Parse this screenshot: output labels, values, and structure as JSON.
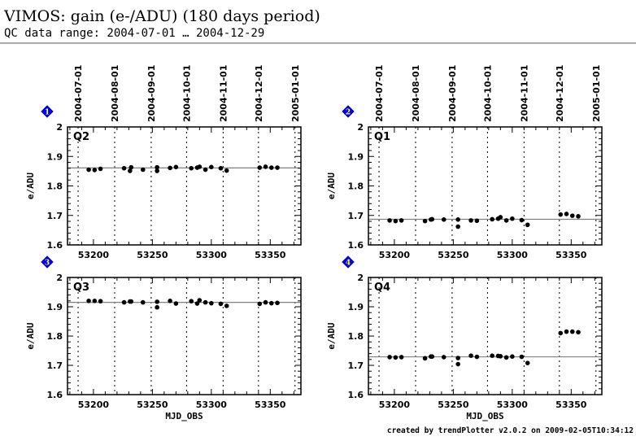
{
  "header": {
    "title": "VIMOS: gain (e-/ADU) (180 days period)",
    "subtitle": "QC data range: 2004-07-01 … 2004-12-29"
  },
  "footer": "created by trendPlotter v2.0.2 on 2009-02-05T10:34:12",
  "colors": {
    "badge": "#0000ff",
    "badge_text": "#ffff00",
    "points": "#000000",
    "mean_line": "#808080"
  },
  "chart_data": [
    {
      "type": "scatter",
      "badge": "1",
      "label": "Q2",
      "ylabel": "e/ADU",
      "xlabel": "",
      "xlim": [
        53178,
        53376
      ],
      "ylim": [
        1.6,
        2.0
      ],
      "xticks": [
        53200,
        53250,
        53300,
        53350
      ],
      "yticks": [
        1.6,
        1.7,
        1.8,
        1.9,
        2
      ],
      "date_ticks": [
        {
          "mjd": 53187,
          "label": "2004-07-01"
        },
        {
          "mjd": 53218,
          "label": "2004-08-01"
        },
        {
          "mjd": 53249,
          "label": "2004-09-01"
        },
        {
          "mjd": 53279,
          "label": "2004-10-01"
        },
        {
          "mjd": 53310,
          "label": "2004-11-01"
        },
        {
          "mjd": 53340,
          "label": "2004-12-01"
        },
        {
          "mjd": 53371,
          "label": "2005-01-01"
        }
      ],
      "mean": 1.861,
      "x": [
        53196,
        53201,
        53206,
        53226,
        53231,
        53232,
        53242,
        53254,
        53254,
        53265,
        53270,
        53283,
        53288,
        53290,
        53295,
        53300,
        53308,
        53313,
        53341,
        53346,
        53351,
        53356
      ],
      "y": [
        1.855,
        1.854,
        1.858,
        1.86,
        1.851,
        1.863,
        1.855,
        1.863,
        1.851,
        1.861,
        1.864,
        1.86,
        1.862,
        1.865,
        1.855,
        1.864,
        1.86,
        1.852,
        1.862,
        1.865,
        1.862,
        1.862
      ]
    },
    {
      "type": "scatter",
      "badge": "2",
      "label": "Q1",
      "ylabel": "e/ADU",
      "xlabel": "",
      "xlim": [
        53178,
        53376
      ],
      "ylim": [
        1.6,
        2.0
      ],
      "xticks": [
        53200,
        53250,
        53300,
        53350
      ],
      "yticks": [
        1.6,
        1.7,
        1.8,
        1.9,
        2
      ],
      "date_ticks": [
        {
          "mjd": 53187,
          "label": "2004-07-01"
        },
        {
          "mjd": 53218,
          "label": "2004-08-01"
        },
        {
          "mjd": 53249,
          "label": "2004-09-01"
        },
        {
          "mjd": 53279,
          "label": "2004-10-01"
        },
        {
          "mjd": 53310,
          "label": "2004-11-01"
        },
        {
          "mjd": 53340,
          "label": "2004-12-01"
        },
        {
          "mjd": 53371,
          "label": "2005-01-01"
        }
      ],
      "mean": 1.687,
      "x": [
        53196,
        53201,
        53206,
        53226,
        53231,
        53232,
        53242,
        53254,
        53254,
        53265,
        53270,
        53283,
        53288,
        53290,
        53295,
        53300,
        53308,
        53313,
        53341,
        53346,
        53351,
        53356
      ],
      "y": [
        1.683,
        1.681,
        1.683,
        1.681,
        1.686,
        1.687,
        1.686,
        1.686,
        1.662,
        1.683,
        1.682,
        1.687,
        1.689,
        1.694,
        1.683,
        1.689,
        1.684,
        1.668,
        1.703,
        1.705,
        1.699,
        1.697
      ]
    },
    {
      "type": "scatter",
      "badge": "3",
      "label": "Q3",
      "ylabel": "e/ADU",
      "xlabel": "MJD_OBS",
      "xlim": [
        53178,
        53376
      ],
      "ylim": [
        1.6,
        2.0
      ],
      "xticks": [
        53200,
        53250,
        53300,
        53350
      ],
      "yticks": [
        1.6,
        1.7,
        1.8,
        1.9,
        2
      ],
      "date_ticks": [
        {
          "mjd": 53187,
          "label": ""
        },
        {
          "mjd": 53218,
          "label": ""
        },
        {
          "mjd": 53249,
          "label": ""
        },
        {
          "mjd": 53279,
          "label": ""
        },
        {
          "mjd": 53310,
          "label": ""
        },
        {
          "mjd": 53340,
          "label": ""
        },
        {
          "mjd": 53371,
          "label": ""
        }
      ],
      "mean": 1.915,
      "x": [
        53196,
        53201,
        53206,
        53226,
        53231,
        53232,
        53242,
        53254,
        53254,
        53265,
        53270,
        53283,
        53288,
        53290,
        53295,
        53300,
        53308,
        53313,
        53341,
        53346,
        53351,
        53356
      ],
      "y": [
        1.92,
        1.92,
        1.919,
        1.915,
        1.918,
        1.918,
        1.915,
        1.917,
        1.898,
        1.92,
        1.911,
        1.919,
        1.911,
        1.922,
        1.915,
        1.912,
        1.91,
        1.903,
        1.91,
        1.915,
        1.912,
        1.913
      ]
    },
    {
      "type": "scatter",
      "badge": "4",
      "label": "Q4",
      "ylabel": "e/ADU",
      "xlabel": "MJD_OBS",
      "xlim": [
        53178,
        53376
      ],
      "ylim": [
        1.6,
        2.0
      ],
      "xticks": [
        53200,
        53250,
        53300,
        53350
      ],
      "yticks": [
        1.6,
        1.7,
        1.8,
        1.9,
        2
      ],
      "date_ticks": [
        {
          "mjd": 53187,
          "label": ""
        },
        {
          "mjd": 53218,
          "label": ""
        },
        {
          "mjd": 53249,
          "label": ""
        },
        {
          "mjd": 53279,
          "label": ""
        },
        {
          "mjd": 53310,
          "label": ""
        },
        {
          "mjd": 53340,
          "label": ""
        },
        {
          "mjd": 53371,
          "label": ""
        }
      ],
      "mean": 1.729,
      "x": [
        53196,
        53201,
        53206,
        53226,
        53231,
        53232,
        53242,
        53254,
        53254,
        53265,
        53270,
        53283,
        53288,
        53290,
        53295,
        53300,
        53308,
        53313,
        53341,
        53346,
        53351,
        53356
      ],
      "y": [
        1.728,
        1.727,
        1.728,
        1.724,
        1.73,
        1.73,
        1.728,
        1.725,
        1.704,
        1.733,
        1.729,
        1.733,
        1.732,
        1.731,
        1.727,
        1.73,
        1.729,
        1.708,
        1.81,
        1.815,
        1.815,
        1.813
      ]
    }
  ]
}
